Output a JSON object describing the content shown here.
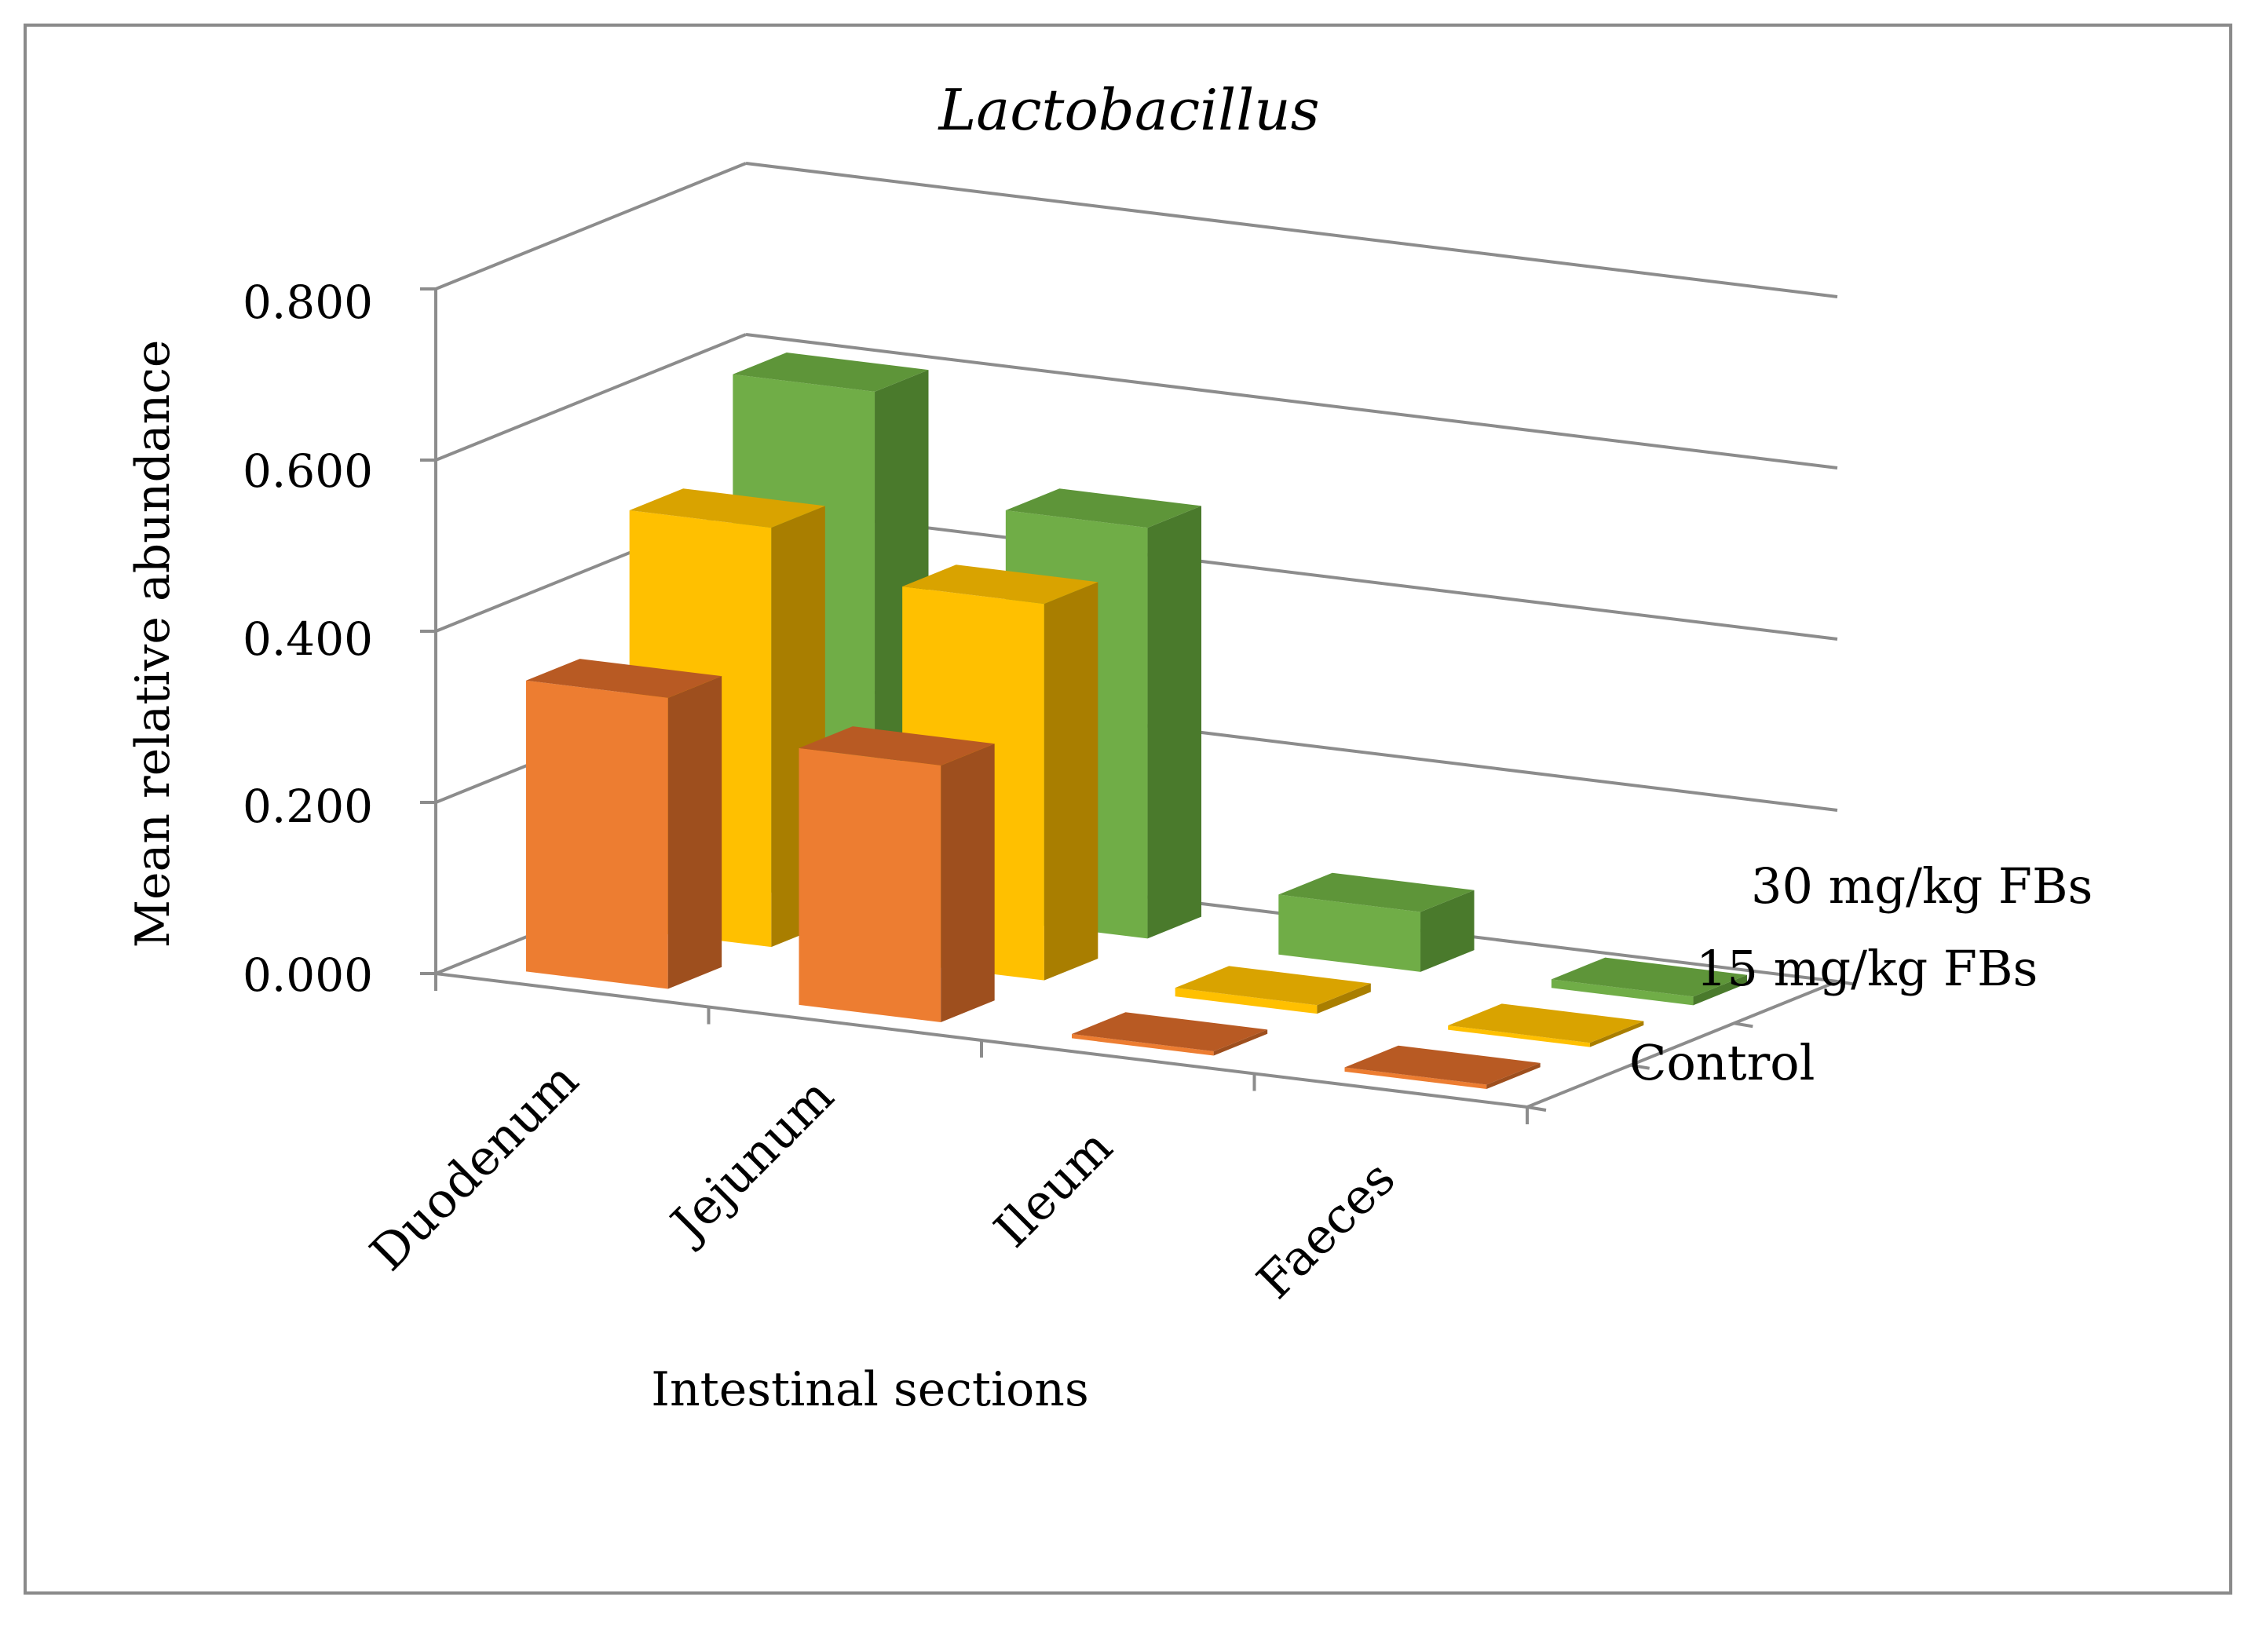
{
  "chart_data": {
    "type": "bar",
    "variant": "3d-column-grid",
    "title": "Lactobacillus",
    "xlabel": "Intestinal sections",
    "ylabel": "Mean relative abundance",
    "ylim": [
      0,
      0.8
    ],
    "y_ticks": [
      "0.000",
      "0.200",
      "0.400",
      "0.600",
      "0.800"
    ],
    "categories": [
      "Duodenum",
      "Jejunum",
      "Ileum",
      "Faeces"
    ],
    "series": [
      {
        "name": "Control",
        "values": [
          0.34,
          0.3,
          0.005,
          0.005
        ],
        "colors": {
          "front": "#ED7D31",
          "side": "#9E4F1E",
          "top": "#B85A23"
        }
      },
      {
        "name": "15 mg/kg FBs",
        "values": [
          0.49,
          0.44,
          0.01,
          0.005
        ],
        "colors": {
          "front": "#FFC000",
          "side": "#A97E00",
          "top": "#D9A300"
        }
      },
      {
        "name": "30 mg/kg FBs",
        "values": [
          0.6,
          0.48,
          0.07,
          0.01
        ],
        "colors": {
          "front": "#70AD47",
          "side": "#4A7A2C",
          "top": "#5E9539"
        }
      }
    ],
    "legend": {
      "placement": "right-depth-axis",
      "entries": [
        "30 mg/kg FBs",
        "15 mg/kg FBs",
        "Control"
      ]
    }
  }
}
